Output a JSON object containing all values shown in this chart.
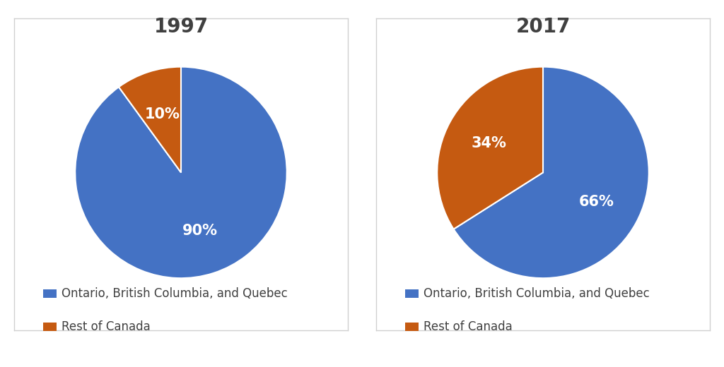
{
  "charts": [
    {
      "title": "1997",
      "values": [
        90,
        10
      ],
      "colors": [
        "#4472C4",
        "#C55A11"
      ],
      "pct_labels": [
        "90%",
        "10%"
      ],
      "startangle": 90,
      "legend_labels": [
        "Ontario, British Columbia, and Quebec",
        "Rest of Canada"
      ]
    },
    {
      "title": "2017",
      "values": [
        66,
        34
      ],
      "colors": [
        "#4472C4",
        "#C55A11"
      ],
      "pct_labels": [
        "66%",
        "34%"
      ],
      "startangle": 90,
      "legend_labels": [
        "Ontario, British Columbia, and Quebec",
        "Rest of Canada"
      ]
    }
  ],
  "bg_color": "#FFFFFF",
  "panel_bg": "#FFFFFF",
  "border_color": "#D0D0D0",
  "title_fontsize": 20,
  "pct_fontsize": 15,
  "legend_fontsize": 12,
  "label_color": "#FFFFFF",
  "title_color": "#404040"
}
